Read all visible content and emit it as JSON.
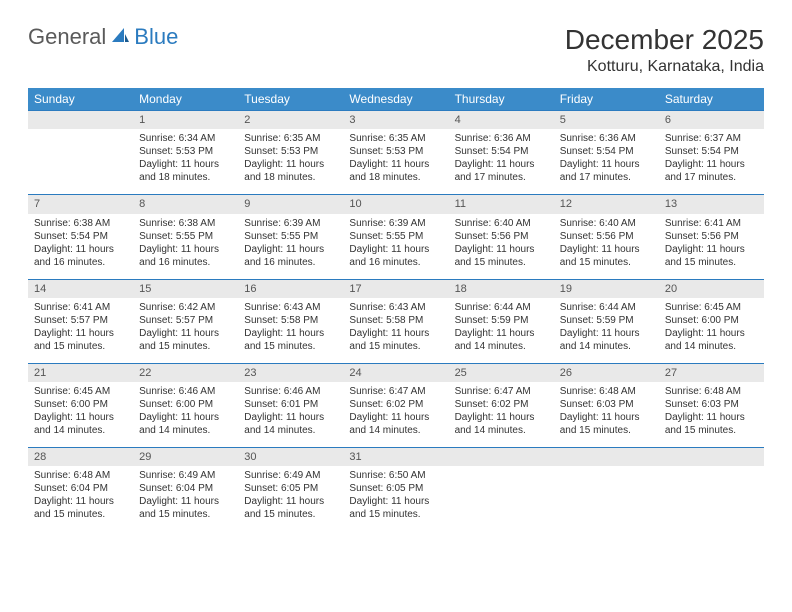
{
  "brand": {
    "name1": "General",
    "name2": "Blue"
  },
  "title": "December 2025",
  "location": "Kotturu, Karnataka, India",
  "colors": {
    "header_bg": "#3b8bc9",
    "header_text": "#ffffff",
    "daynum_bg": "#e9e9e9",
    "daynum_border": "#2b7bbf",
    "body_text": "#333333",
    "logo_gray": "#5a5a5a",
    "logo_blue": "#2b7bbf"
  },
  "day_headers": [
    "Sunday",
    "Monday",
    "Tuesday",
    "Wednesday",
    "Thursday",
    "Friday",
    "Saturday"
  ],
  "weeks": [
    {
      "nums": [
        "",
        "1",
        "2",
        "3",
        "4",
        "5",
        "6"
      ],
      "info": [
        {},
        {
          "sunrise": "Sunrise: 6:34 AM",
          "sunset": "Sunset: 5:53 PM",
          "daylight": "Daylight: 11 hours and 18 minutes."
        },
        {
          "sunrise": "Sunrise: 6:35 AM",
          "sunset": "Sunset: 5:53 PM",
          "daylight": "Daylight: 11 hours and 18 minutes."
        },
        {
          "sunrise": "Sunrise: 6:35 AM",
          "sunset": "Sunset: 5:53 PM",
          "daylight": "Daylight: 11 hours and 18 minutes."
        },
        {
          "sunrise": "Sunrise: 6:36 AM",
          "sunset": "Sunset: 5:54 PM",
          "daylight": "Daylight: 11 hours and 17 minutes."
        },
        {
          "sunrise": "Sunrise: 6:36 AM",
          "sunset": "Sunset: 5:54 PM",
          "daylight": "Daylight: 11 hours and 17 minutes."
        },
        {
          "sunrise": "Sunrise: 6:37 AM",
          "sunset": "Sunset: 5:54 PM",
          "daylight": "Daylight: 11 hours and 17 minutes."
        }
      ]
    },
    {
      "nums": [
        "7",
        "8",
        "9",
        "10",
        "11",
        "12",
        "13"
      ],
      "info": [
        {
          "sunrise": "Sunrise: 6:38 AM",
          "sunset": "Sunset: 5:54 PM",
          "daylight": "Daylight: 11 hours and 16 minutes."
        },
        {
          "sunrise": "Sunrise: 6:38 AM",
          "sunset": "Sunset: 5:55 PM",
          "daylight": "Daylight: 11 hours and 16 minutes."
        },
        {
          "sunrise": "Sunrise: 6:39 AM",
          "sunset": "Sunset: 5:55 PM",
          "daylight": "Daylight: 11 hours and 16 minutes."
        },
        {
          "sunrise": "Sunrise: 6:39 AM",
          "sunset": "Sunset: 5:55 PM",
          "daylight": "Daylight: 11 hours and 16 minutes."
        },
        {
          "sunrise": "Sunrise: 6:40 AM",
          "sunset": "Sunset: 5:56 PM",
          "daylight": "Daylight: 11 hours and 15 minutes."
        },
        {
          "sunrise": "Sunrise: 6:40 AM",
          "sunset": "Sunset: 5:56 PM",
          "daylight": "Daylight: 11 hours and 15 minutes."
        },
        {
          "sunrise": "Sunrise: 6:41 AM",
          "sunset": "Sunset: 5:56 PM",
          "daylight": "Daylight: 11 hours and 15 minutes."
        }
      ]
    },
    {
      "nums": [
        "14",
        "15",
        "16",
        "17",
        "18",
        "19",
        "20"
      ],
      "info": [
        {
          "sunrise": "Sunrise: 6:41 AM",
          "sunset": "Sunset: 5:57 PM",
          "daylight": "Daylight: 11 hours and 15 minutes."
        },
        {
          "sunrise": "Sunrise: 6:42 AM",
          "sunset": "Sunset: 5:57 PM",
          "daylight": "Daylight: 11 hours and 15 minutes."
        },
        {
          "sunrise": "Sunrise: 6:43 AM",
          "sunset": "Sunset: 5:58 PM",
          "daylight": "Daylight: 11 hours and 15 minutes."
        },
        {
          "sunrise": "Sunrise: 6:43 AM",
          "sunset": "Sunset: 5:58 PM",
          "daylight": "Daylight: 11 hours and 15 minutes."
        },
        {
          "sunrise": "Sunrise: 6:44 AM",
          "sunset": "Sunset: 5:59 PM",
          "daylight": "Daylight: 11 hours and 14 minutes."
        },
        {
          "sunrise": "Sunrise: 6:44 AM",
          "sunset": "Sunset: 5:59 PM",
          "daylight": "Daylight: 11 hours and 14 minutes."
        },
        {
          "sunrise": "Sunrise: 6:45 AM",
          "sunset": "Sunset: 6:00 PM",
          "daylight": "Daylight: 11 hours and 14 minutes."
        }
      ]
    },
    {
      "nums": [
        "21",
        "22",
        "23",
        "24",
        "25",
        "26",
        "27"
      ],
      "info": [
        {
          "sunrise": "Sunrise: 6:45 AM",
          "sunset": "Sunset: 6:00 PM",
          "daylight": "Daylight: 11 hours and 14 minutes."
        },
        {
          "sunrise": "Sunrise: 6:46 AM",
          "sunset": "Sunset: 6:00 PM",
          "daylight": "Daylight: 11 hours and 14 minutes."
        },
        {
          "sunrise": "Sunrise: 6:46 AM",
          "sunset": "Sunset: 6:01 PM",
          "daylight": "Daylight: 11 hours and 14 minutes."
        },
        {
          "sunrise": "Sunrise: 6:47 AM",
          "sunset": "Sunset: 6:02 PM",
          "daylight": "Daylight: 11 hours and 14 minutes."
        },
        {
          "sunrise": "Sunrise: 6:47 AM",
          "sunset": "Sunset: 6:02 PM",
          "daylight": "Daylight: 11 hours and 14 minutes."
        },
        {
          "sunrise": "Sunrise: 6:48 AM",
          "sunset": "Sunset: 6:03 PM",
          "daylight": "Daylight: 11 hours and 15 minutes."
        },
        {
          "sunrise": "Sunrise: 6:48 AM",
          "sunset": "Sunset: 6:03 PM",
          "daylight": "Daylight: 11 hours and 15 minutes."
        }
      ]
    },
    {
      "nums": [
        "28",
        "29",
        "30",
        "31",
        "",
        "",
        ""
      ],
      "info": [
        {
          "sunrise": "Sunrise: 6:48 AM",
          "sunset": "Sunset: 6:04 PM",
          "daylight": "Daylight: 11 hours and 15 minutes."
        },
        {
          "sunrise": "Sunrise: 6:49 AM",
          "sunset": "Sunset: 6:04 PM",
          "daylight": "Daylight: 11 hours and 15 minutes."
        },
        {
          "sunrise": "Sunrise: 6:49 AM",
          "sunset": "Sunset: 6:05 PM",
          "daylight": "Daylight: 11 hours and 15 minutes."
        },
        {
          "sunrise": "Sunrise: 6:50 AM",
          "sunset": "Sunset: 6:05 PM",
          "daylight": "Daylight: 11 hours and 15 minutes."
        },
        {},
        {},
        {}
      ]
    }
  ]
}
